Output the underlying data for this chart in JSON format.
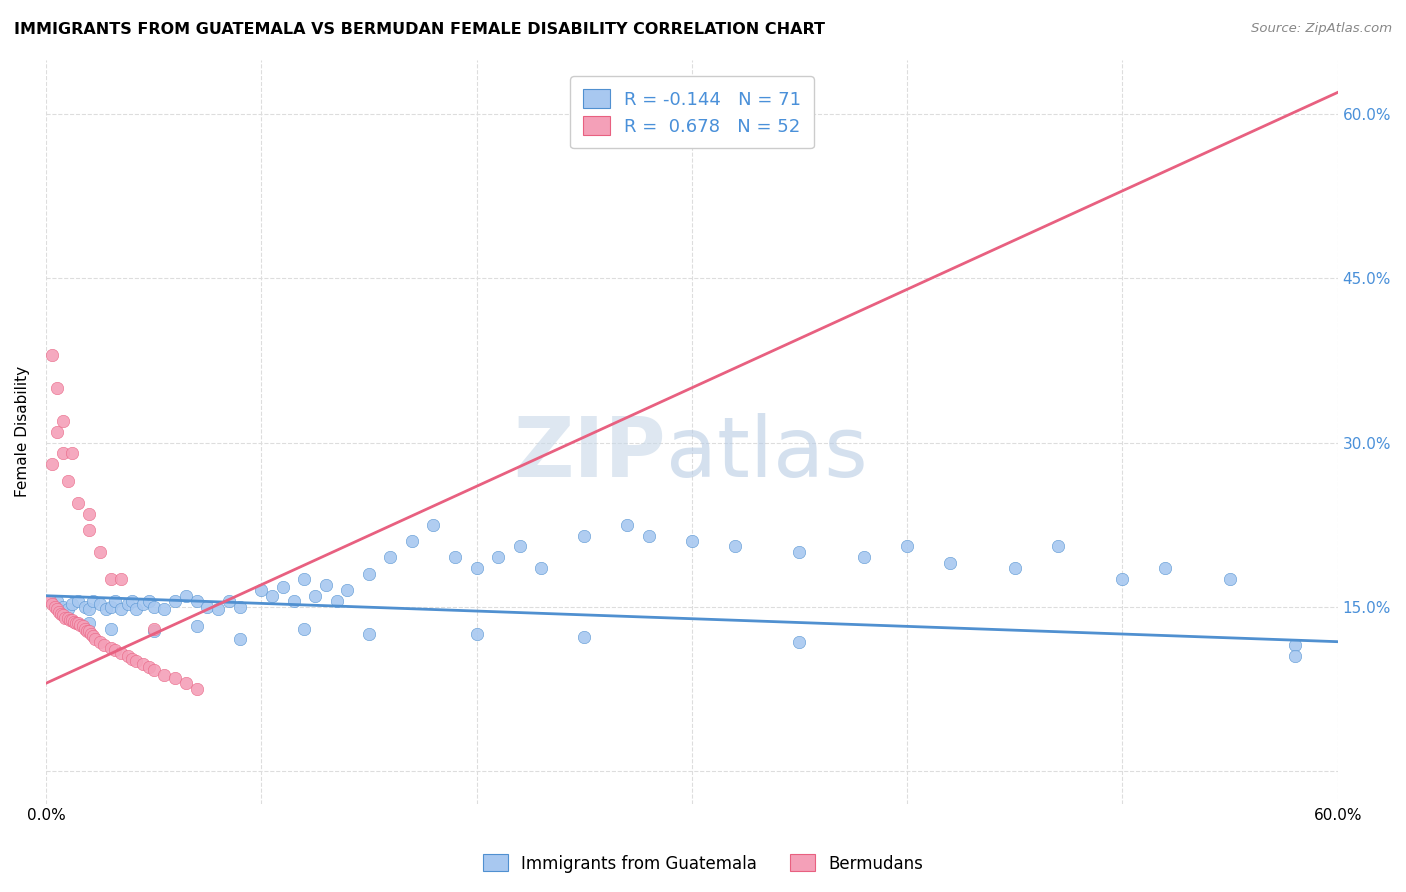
{
  "title": "IMMIGRANTS FROM GUATEMALA VS BERMUDAN FEMALE DISABILITY CORRELATION CHART",
  "source": "Source: ZipAtlas.com",
  "ylabel": "Female Disability",
  "legend_label1": "Immigrants from Guatemala",
  "legend_label2": "Bermudans",
  "legend_r1": "R = -0.144",
  "legend_n1": "N = 71",
  "legend_r2": "R =  0.678",
  "legend_n2": "N = 52",
  "color_blue": "#A8C8F0",
  "color_pink": "#F4A0B8",
  "color_blue_line": "#5090D0",
  "color_pink_line": "#E86080",
  "xlim": [
    0.0,
    0.6
  ],
  "ylim": [
    -0.03,
    0.65
  ],
  "blue_scatter_x": [
    0.005,
    0.008,
    0.01,
    0.012,
    0.015,
    0.018,
    0.02,
    0.022,
    0.025,
    0.028,
    0.03,
    0.032,
    0.035,
    0.038,
    0.04,
    0.042,
    0.045,
    0.048,
    0.05,
    0.055,
    0.06,
    0.065,
    0.07,
    0.075,
    0.08,
    0.085,
    0.09,
    0.1,
    0.105,
    0.11,
    0.115,
    0.12,
    0.125,
    0.13,
    0.135,
    0.14,
    0.15,
    0.16,
    0.17,
    0.18,
    0.19,
    0.2,
    0.21,
    0.22,
    0.23,
    0.25,
    0.27,
    0.28,
    0.3,
    0.32,
    0.35,
    0.38,
    0.4,
    0.42,
    0.45,
    0.47,
    0.5,
    0.52,
    0.55,
    0.58,
    0.02,
    0.03,
    0.05,
    0.07,
    0.09,
    0.12,
    0.15,
    0.2,
    0.25,
    0.35,
    0.58
  ],
  "blue_scatter_y": [
    0.155,
    0.15,
    0.148,
    0.152,
    0.155,
    0.15,
    0.148,
    0.155,
    0.152,
    0.148,
    0.15,
    0.155,
    0.148,
    0.152,
    0.155,
    0.148,
    0.152,
    0.155,
    0.15,
    0.148,
    0.155,
    0.16,
    0.155,
    0.15,
    0.148,
    0.155,
    0.15,
    0.165,
    0.16,
    0.168,
    0.155,
    0.175,
    0.16,
    0.17,
    0.155,
    0.165,
    0.18,
    0.195,
    0.21,
    0.225,
    0.195,
    0.185,
    0.195,
    0.205,
    0.185,
    0.215,
    0.225,
    0.215,
    0.21,
    0.205,
    0.2,
    0.195,
    0.205,
    0.19,
    0.185,
    0.205,
    0.175,
    0.185,
    0.175,
    0.115,
    0.135,
    0.13,
    0.128,
    0.132,
    0.12,
    0.13,
    0.125,
    0.125,
    0.122,
    0.118,
    0.105
  ],
  "pink_scatter_x": [
    0.002,
    0.003,
    0.004,
    0.005,
    0.006,
    0.007,
    0.008,
    0.009,
    0.01,
    0.011,
    0.012,
    0.013,
    0.014,
    0.015,
    0.016,
    0.017,
    0.018,
    0.019,
    0.02,
    0.021,
    0.022,
    0.023,
    0.025,
    0.027,
    0.03,
    0.032,
    0.035,
    0.038,
    0.04,
    0.042,
    0.045,
    0.048,
    0.05,
    0.055,
    0.06,
    0.065,
    0.07,
    0.003,
    0.005,
    0.008,
    0.01,
    0.015,
    0.02,
    0.025,
    0.03,
    0.003,
    0.005,
    0.008,
    0.012,
    0.02,
    0.035,
    0.05
  ],
  "pink_scatter_y": [
    0.155,
    0.152,
    0.15,
    0.148,
    0.145,
    0.143,
    0.142,
    0.14,
    0.14,
    0.138,
    0.138,
    0.136,
    0.135,
    0.135,
    0.133,
    0.132,
    0.13,
    0.128,
    0.128,
    0.125,
    0.123,
    0.12,
    0.118,
    0.115,
    0.112,
    0.11,
    0.108,
    0.105,
    0.102,
    0.1,
    0.098,
    0.095,
    0.092,
    0.088,
    0.085,
    0.08,
    0.075,
    0.28,
    0.31,
    0.29,
    0.265,
    0.245,
    0.22,
    0.2,
    0.175,
    0.38,
    0.35,
    0.32,
    0.29,
    0.235,
    0.175,
    0.13
  ],
  "blue_line_x": [
    0.0,
    0.6
  ],
  "blue_line_y": [
    0.16,
    0.118
  ],
  "pink_line_x": [
    0.0,
    0.6
  ],
  "pink_line_y": [
    0.08,
    0.62
  ],
  "yticks": [
    0.0,
    0.15,
    0.3,
    0.45,
    0.6
  ],
  "ytick_labels_right": [
    "",
    "15.0%",
    "30.0%",
    "45.0%",
    "60.0%"
  ],
  "xticks": [
    0.0,
    0.1,
    0.2,
    0.3,
    0.4,
    0.5,
    0.6
  ],
  "xtick_labels": [
    "0.0%",
    "",
    "",
    "",
    "",
    "",
    "60.0%"
  ],
  "grid_color": "#DDDDDD",
  "background_color": "#FFFFFF",
  "right_axis_color": "#4A90D9",
  "watermark_zip_color": "#C8DCF0",
  "watermark_atlas_color": "#C8DCF0"
}
